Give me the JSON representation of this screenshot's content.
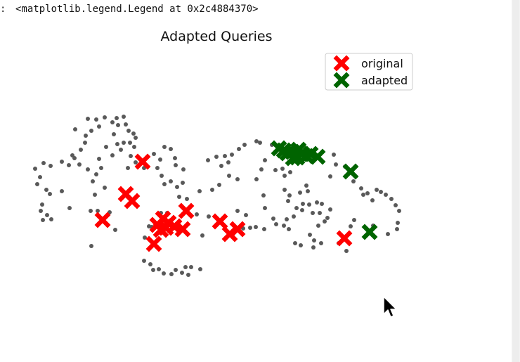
{
  "output": {
    "prompt": ":",
    "text": "<matplotlib.legend.Legend at 0x2c4884370>"
  },
  "chart_data": {
    "type": "scatter",
    "title": "Adapted Queries",
    "xlabel": "",
    "ylabel": "",
    "axes_visible": false,
    "grid": false,
    "legend_placement": "top-right",
    "series": [
      {
        "name": "",
        "marker": "dot",
        "color": "#595959",
        "points": [
          [
            125,
            169
          ],
          [
            137,
            170
          ],
          [
            149,
            167
          ],
          [
            166,
            168
          ],
          [
            176,
            166
          ],
          [
            160,
            174
          ],
          [
            168,
            178
          ],
          [
            179,
            177
          ],
          [
            183,
            186
          ],
          [
            190,
            190
          ],
          [
            193,
            196
          ],
          [
            185,
            203
          ],
          [
            191,
            209
          ],
          [
            176,
            203
          ],
          [
            162,
            191
          ],
          [
            167,
            205
          ],
          [
            172,
            213
          ],
          [
            186,
            222
          ],
          [
            193,
            231
          ],
          [
            182,
            239
          ],
          [
            160,
            221
          ],
          [
            141,
            180
          ],
          [
            130,
            186
          ],
          [
            122,
            193
          ],
          [
            121,
            203
          ],
          [
            115,
            213
          ],
          [
            107,
            184
          ],
          [
            103,
            221
          ],
          [
            106,
            225
          ],
          [
            98,
            235
          ],
          [
            88,
            230
          ],
          [
            72,
            236
          ],
          [
            62,
            232
          ],
          [
            50,
            240
          ],
          [
            57,
            252
          ],
          [
            53,
            262
          ],
          [
            66,
            270
          ],
          [
            71,
            276
          ],
          [
            60,
            291
          ],
          [
            58,
            300
          ],
          [
            67,
            306
          ],
          [
            73,
            312
          ],
          [
            61,
            313
          ],
          [
            88,
            272
          ],
          [
            99,
            296
          ],
          [
            113,
            234
          ],
          [
            125,
            241
          ],
          [
            137,
            248
          ],
          [
            132,
            258
          ],
          [
            144,
            239
          ],
          [
            141,
            226
          ],
          [
            151,
            209
          ],
          [
            149,
            267
          ],
          [
            135,
            277
          ],
          [
            129,
            300
          ],
          [
            139,
            300
          ],
          [
            156,
            302
          ],
          [
            164,
            327
          ],
          [
            130,
            350
          ],
          [
            205,
            239
          ],
          [
            219,
            219
          ],
          [
            228,
            227
          ],
          [
            234,
            209
          ],
          [
            243,
            212
          ],
          [
            224,
            239
          ],
          [
            234,
            262
          ],
          [
            230,
            250
          ],
          [
            243,
            258
          ],
          [
            252,
            266
          ],
          [
            260,
            260
          ],
          [
            250,
            235
          ],
          [
            261,
            241
          ],
          [
            249,
            225
          ],
          [
            255,
            280
          ],
          [
            266,
            283
          ],
          [
            280,
            305
          ],
          [
            284,
            272
          ],
          [
            288,
            335
          ],
          [
            297,
            308
          ],
          [
            238,
            303
          ],
          [
            229,
            303
          ],
          [
            212,
            322
          ],
          [
            206,
            338
          ],
          [
            216,
            323
          ],
          [
            205,
            371
          ],
          [
            214,
            376
          ],
          [
            218,
            384
          ],
          [
            226,
            383
          ],
          [
            233,
            389
          ],
          [
            244,
            390
          ],
          [
            250,
            384
          ],
          [
            259,
            388
          ],
          [
            264,
            380
          ],
          [
            268,
            391
          ],
          [
            272,
            380
          ],
          [
            285,
            383
          ],
          [
            296,
            228
          ],
          [
            308,
            223
          ],
          [
            320,
            222
          ],
          [
            330,
            220
          ],
          [
            340,
            212
          ],
          [
            348,
            206
          ],
          [
            325,
            231
          ],
          [
            315,
            236
          ],
          [
            326,
            250
          ],
          [
            312,
            263
          ],
          [
            302,
            270
          ],
          [
            338,
            255
          ],
          [
            338,
            300
          ],
          [
            350,
            306
          ],
          [
            356,
            324
          ],
          [
            346,
            325
          ],
          [
            364,
            323
          ],
          [
            376,
            326
          ],
          [
            377,
            296
          ],
          [
            375,
            278
          ],
          [
            365,
            255
          ],
          [
            372,
            241
          ],
          [
            377,
            228
          ],
          [
            370,
            203
          ],
          [
            365,
            201
          ],
          [
            387,
            206
          ],
          [
            400,
            218
          ],
          [
            402,
            240
          ],
          [
            392,
            242
          ],
          [
            405,
            250
          ],
          [
            413,
            245
          ],
          [
            405,
            270
          ],
          [
            412,
            278
          ],
          [
            410,
            286
          ],
          [
            422,
            296
          ],
          [
            430,
            299
          ],
          [
            431,
            290
          ],
          [
            438,
            272
          ],
          [
            436,
            264
          ],
          [
            427,
            274
          ],
          [
            440,
            291
          ],
          [
            451,
            288
          ],
          [
            458,
            290
          ],
          [
            455,
            303
          ],
          [
            445,
            303
          ],
          [
            470,
            298
          ],
          [
            466,
            310
          ],
          [
            462,
            315
          ],
          [
            453,
            321
          ],
          [
            441,
            334
          ],
          [
            447,
            342
          ],
          [
            428,
            349
          ],
          [
            446,
            352
          ],
          [
            457,
            346
          ],
          [
            420,
            346
          ],
          [
            411,
            326
          ],
          [
            404,
            321
          ],
          [
            393,
            319
          ],
          [
            389,
            311
          ],
          [
            408,
            312
          ],
          [
            418,
            308
          ],
          [
            491,
            237
          ],
          [
            503,
            258
          ],
          [
            514,
            268
          ],
          [
            517,
            277
          ],
          [
            523,
            275
          ],
          [
            530,
            285
          ],
          [
            536,
            270
          ],
          [
            542,
            273
          ],
          [
            549,
            277
          ],
          [
            557,
            283
          ],
          [
            563,
            292
          ],
          [
            568,
            300
          ],
          [
            566,
            317
          ],
          [
            565,
            326
          ],
          [
            552,
            333
          ],
          [
            531,
            321
          ],
          [
            504,
            313
          ],
          [
            499,
            322
          ],
          [
            482,
            346
          ],
          [
            493,
            357
          ],
          [
            470,
            251
          ],
          [
            475,
            220
          ],
          [
            478,
            234
          ]
        ]
      },
      {
        "name": "original",
        "marker": "x",
        "color": "#ff0000",
        "points": [
          [
            203,
            230
          ],
          [
            179,
            276
          ],
          [
            188,
            286
          ],
          [
            146,
            313
          ],
          [
            265,
            300
          ],
          [
            232,
            311
          ],
          [
            224,
            320
          ],
          [
            240,
            317
          ],
          [
            236,
            324
          ],
          [
            229,
            327
          ],
          [
            248,
            322
          ],
          [
            260,
            326
          ],
          [
            219,
            347
          ],
          [
            313,
            315
          ],
          [
            338,
            326
          ],
          [
            327,
            333
          ],
          [
            490,
            339
          ]
        ]
      },
      {
        "name": "adapted",
        "marker": "x",
        "color": "#006400",
        "points": [
          [
            397,
            211
          ],
          [
            404,
            214
          ],
          [
            409,
            218
          ],
          [
            416,
            216
          ],
          [
            423,
            224
          ],
          [
            430,
            219
          ],
          [
            436,
            222
          ],
          [
            442,
            219
          ],
          [
            452,
            223
          ],
          [
            425,
            213
          ],
          [
            417,
            225
          ],
          [
            499,
            244
          ],
          [
            526,
            330
          ]
        ]
      }
    ]
  },
  "colors": {
    "original": "#ff0000",
    "adapted": "#006400",
    "points": "#595959"
  },
  "cursor_icon": "mouse-pointer-icon"
}
